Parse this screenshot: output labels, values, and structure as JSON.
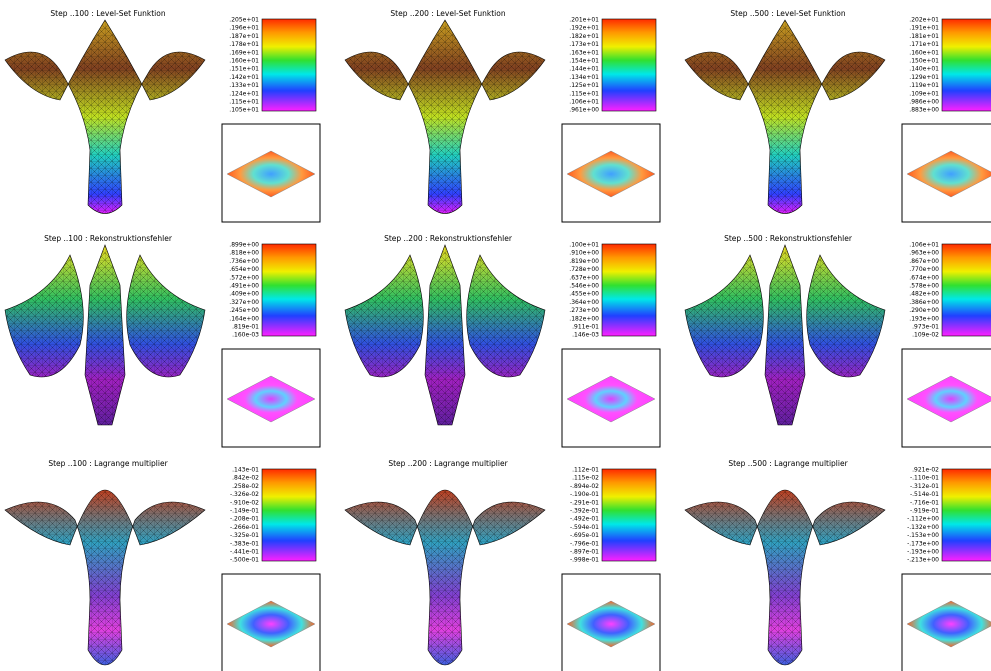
{
  "panels": [
    {
      "title": "Step ..100 : Level-Set Funktion",
      "colorbar_labels": [
        ".205e+01",
        ".196e+01",
        ".187e+01",
        ".178e+01",
        ".169e+01",
        ".160e+01",
        ".151e+01",
        ".142e+01",
        ".133e+01",
        ".124e+01",
        ".115e+01",
        ".105e+01"
      ]
    },
    {
      "title": "Step ..200 : Level-Set Funktion",
      "colorbar_labels": [
        ".201e+01",
        ".192e+01",
        ".182e+01",
        ".173e+01",
        ".163e+01",
        ".154e+01",
        ".144e+01",
        ".134e+01",
        ".125e+01",
        ".115e+01",
        ".106e+01",
        ".961e+00"
      ]
    },
    {
      "title": "Step ..500 : Level-Set Funktion",
      "colorbar_labels": [
        ".202e+01",
        ".191e+01",
        ".181e+01",
        ".171e+01",
        ".160e+01",
        ".150e+01",
        ".140e+01",
        ".129e+01",
        ".119e+01",
        ".109e+01",
        ".986e+00",
        ".883e+00"
      ]
    },
    {
      "title": "Step ..100 : Rekonstruktionsfehler",
      "colorbar_labels": [
        ".899e+00",
        ".818e+00",
        ".736e+00",
        ".654e+00",
        ".572e+00",
        ".491e+00",
        ".409e+00",
        ".327e+00",
        ".245e+00",
        ".164e+00",
        ".819e-01",
        ".160e-03"
      ]
    },
    {
      "title": "Step ..200 : Rekonstruktionsfehler",
      "colorbar_labels": [
        ".100e+01",
        ".910e+00",
        ".819e+00",
        ".728e+00",
        ".637e+00",
        ".546e+00",
        ".455e+00",
        ".364e+00",
        ".273e+00",
        ".182e+00",
        ".911e-01",
        ".146e-03"
      ]
    },
    {
      "title": "Step ..500 : Rekonstruktionsfehler",
      "colorbar_labels": [
        ".106e+01",
        ".963e+00",
        ".867e+00",
        ".770e+00",
        ".674e+00",
        ".578e+00",
        ".482e+00",
        ".386e+00",
        ".290e+00",
        ".193e+00",
        ".973e-01",
        ".109e-02"
      ]
    },
    {
      "title": "Step ..100 : Lagrange multiplier",
      "colorbar_labels": [
        ".143e-01",
        ".842e-02",
        ".258e-02",
        "-.326e-02",
        "-.910e-02",
        "-.149e-01",
        "-.208e-01",
        "-.266e-01",
        "-.325e-01",
        "-.383e-01",
        "-.441e-01",
        "-.500e-01"
      ]
    },
    {
      "title": "Step ..200 : Lagrange multiplier",
      "colorbar_labels": [
        ".112e-01",
        ".115e-02",
        "-.894e-02",
        "-.190e-01",
        "-.291e-01",
        "-.392e-01",
        "-.492e-01",
        "-.594e-01",
        "-.695e-01",
        "-.796e-01",
        "-.897e-01",
        "-.998e-01"
      ]
    },
    {
      "title": "Step ..500 : Lagrange multiplier",
      "colorbar_labels": [
        ".921e-02",
        "-.110e-01",
        "-.312e-01",
        "-.514e-01",
        "-.716e-01",
        "-.919e-01",
        "-.112e+00",
        "-.132e+00",
        "-.153e+00",
        "-.173e+00",
        "-.193e+00",
        "-.213e+00"
      ]
    }
  ]
}
